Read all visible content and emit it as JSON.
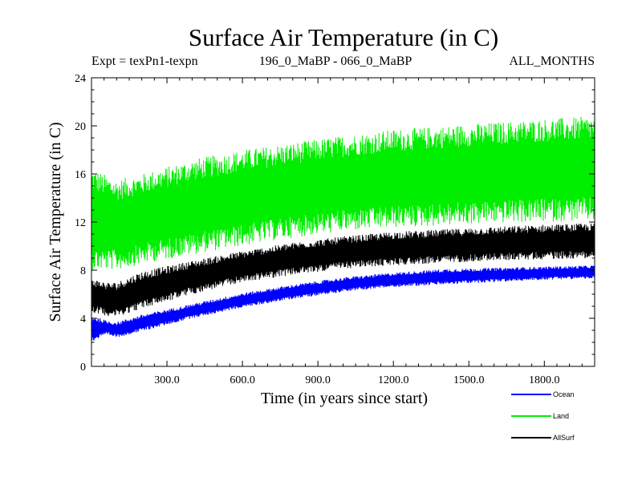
{
  "chart_data": {
    "type": "line",
    "title": "Surface Air Temperature (in C)",
    "subtitle_left": "Expt = texPn1-texpn",
    "subtitle_center": "196_0_MaBP - 066_0_MaBP",
    "subtitle_right": "ALL_MONTHS",
    "xlabel": "Time (in years since start)",
    "ylabel": "Surface Air Temperature (in C)",
    "xlim": [
      0,
      2000
    ],
    "ylim": [
      0,
      24
    ],
    "x_ticks": [
      300,
      600,
      900,
      1200,
      1500,
      1800
    ],
    "x_tick_labels": [
      "300.0",
      "600.0",
      "900.0",
      "1200.0",
      "1500.0",
      "1800.0"
    ],
    "y_ticks": [
      0,
      4,
      8,
      12,
      16,
      20,
      24
    ],
    "y_tick_labels": [
      "0",
      "4",
      "8",
      "12",
      "16",
      "20",
      "24"
    ],
    "grid": false,
    "legend_placement": "below-right",
    "series": [
      {
        "name": "Land",
        "color": "#00ee00",
        "x": [
          0,
          100,
          200,
          400,
          600,
          800,
          1000,
          1200,
          1400,
          1600,
          1800,
          2000
        ],
        "min": [
          8.0,
          8.0,
          8.5,
          9.3,
          10.0,
          10.7,
          11.2,
          11.5,
          11.7,
          11.9,
          12.0,
          12.1
        ],
        "max": [
          16.5,
          15.5,
          16.0,
          17.2,
          18.0,
          18.6,
          19.2,
          19.7,
          20.0,
          20.3,
          20.6,
          20.8
        ]
      },
      {
        "name": "AllSurf",
        "color": "#000000",
        "x": [
          0,
          60,
          100,
          200,
          400,
          600,
          800,
          1000,
          1200,
          1400,
          1600,
          1800,
          2000
        ],
        "min": [
          4.5,
          4.2,
          4.1,
          4.8,
          6.0,
          7.0,
          7.6,
          8.1,
          8.4,
          8.6,
          8.8,
          8.9,
          9.0
        ],
        "max": [
          7.3,
          7.0,
          7.0,
          7.9,
          8.8,
          9.6,
          10.3,
          10.8,
          11.2,
          11.4,
          11.6,
          11.8,
          11.9
        ]
      },
      {
        "name": "Ocean",
        "color": "#0000ff",
        "x": [
          0,
          60,
          100,
          200,
          400,
          600,
          800,
          1000,
          1200,
          1400,
          1600,
          1800,
          2000
        ],
        "min": [
          2.0,
          2.6,
          2.4,
          2.9,
          4.0,
          4.9,
          5.6,
          6.2,
          6.6,
          6.8,
          7.0,
          7.2,
          7.3
        ],
        "max": [
          4.3,
          3.8,
          3.7,
          4.3,
          5.2,
          6.1,
          6.8,
          7.4,
          7.8,
          8.1,
          8.2,
          8.3,
          8.4
        ]
      }
    ],
    "legend": [
      {
        "name": "Ocean",
        "color": "#0000ff"
      },
      {
        "name": "Land",
        "color": "#00ee00"
      },
      {
        "name": "AllSurf",
        "color": "#000000"
      }
    ]
  }
}
